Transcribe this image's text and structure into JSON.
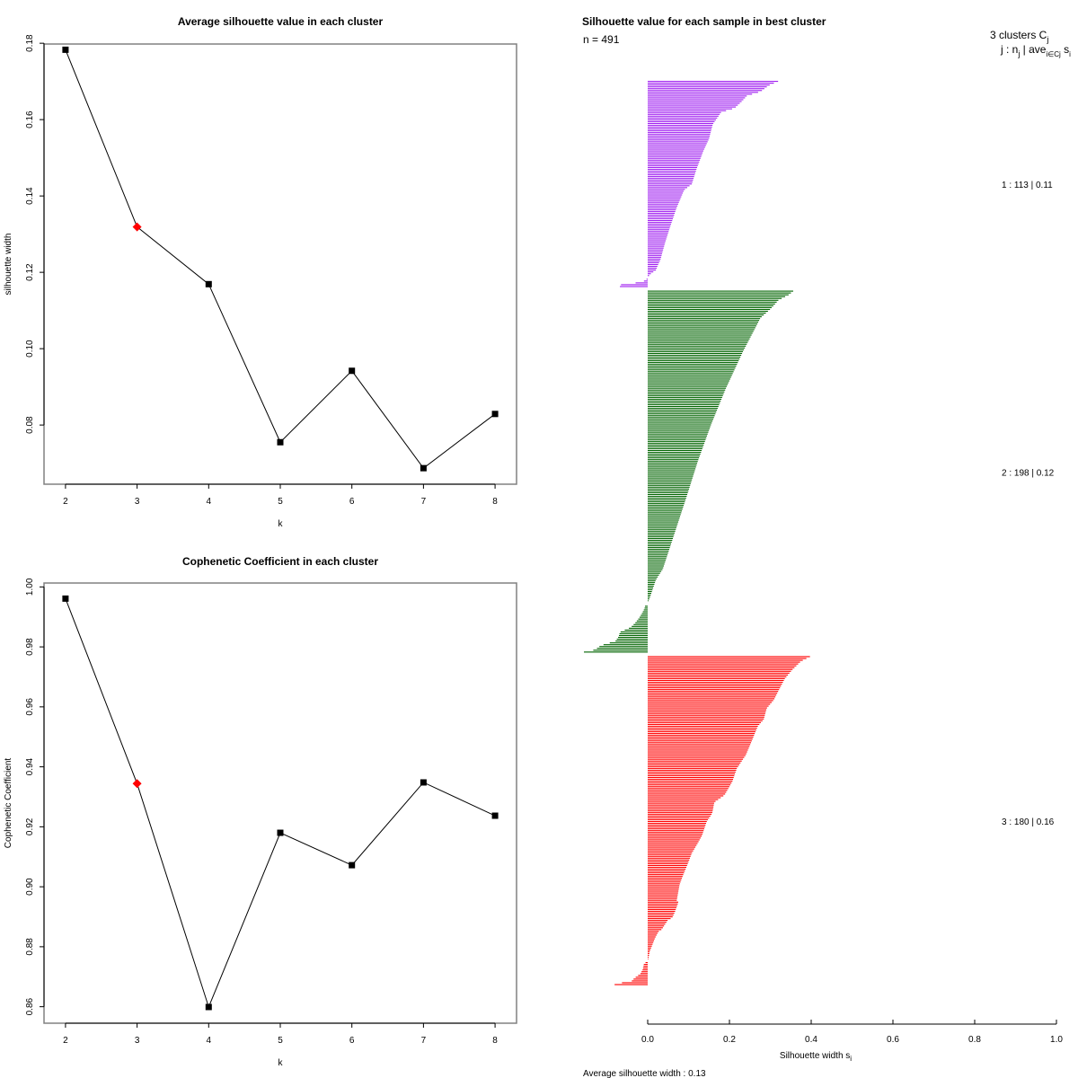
{
  "chart_data": [
    {
      "type": "line",
      "title": "Average silhouette value in each cluster",
      "xlabel": "k",
      "ylabel": "silhouette width",
      "x": [
        2,
        3,
        4,
        5,
        6,
        7,
        8
      ],
      "values": [
        0.1783,
        0.1319,
        0.1169,
        0.0755,
        0.0942,
        0.0687,
        0.0829
      ],
      "highlight_index": 1,
      "highlight_color": "#ff0000",
      "point_color": "#000000",
      "xticks": [
        "2",
        "3",
        "4",
        "5",
        "6",
        "7",
        "8"
      ],
      "yticks": [
        0.08,
        0.1,
        0.12,
        0.14,
        0.16,
        0.18
      ],
      "ytick_labels": [
        "0.08",
        "0.10",
        "0.12",
        "0.14",
        "0.16",
        "0.18"
      ],
      "xlim": [
        1.7,
        8.3
      ],
      "ylim": [
        0.0645,
        0.1798
      ],
      "grid": false
    },
    {
      "type": "line",
      "title": "Cophenetic Coefficient in each cluster",
      "xlabel": "k",
      "ylabel": "Cophenetic Coefficient",
      "x": [
        2,
        3,
        4,
        5,
        6,
        7,
        8
      ],
      "values": [
        0.9961,
        0.9344,
        0.8599,
        0.918,
        0.9072,
        0.9348,
        0.9237
      ],
      "highlight_index": 1,
      "highlight_color": "#ff0000",
      "point_color": "#000000",
      "xticks": [
        "2",
        "3",
        "4",
        "5",
        "6",
        "7",
        "8"
      ],
      "yticks": [
        0.86,
        0.88,
        0.9,
        0.92,
        0.94,
        0.96,
        0.98,
        1.0
      ],
      "ytick_labels": [
        "0.86",
        "0.88",
        "0.90",
        "0.92",
        "0.94",
        "0.96",
        "0.98",
        "1.00"
      ],
      "xlim": [
        1.7,
        8.3
      ],
      "ylim": [
        0.8545,
        1.0013
      ],
      "grid": false
    },
    {
      "type": "bar",
      "orientation": "horizontal",
      "title": "Silhouette value for each sample in best cluster",
      "subtitle": "n = 491",
      "xlabel": "Silhouette width s",
      "xlabel_sub": "i",
      "xlim": [
        0.0,
        1.0
      ],
      "xticks": [
        "0.0",
        "0.2",
        "0.4",
        "0.6",
        "0.8",
        "1.0"
      ],
      "xtick_values": [
        0.0,
        0.2,
        0.4,
        0.6,
        0.8,
        1.0
      ],
      "footer": "Average silhouette width :  0.13",
      "legend_header": {
        "line1": "3  clusters  C",
        "line1_sub": "j",
        "line2": "j :  n",
        "line2_sub": "j",
        "line2_rest": " | ave",
        "line2_sub2": "i∈Cj",
        "line2_end": "  s",
        "line2_sub3": "i"
      },
      "clusters": [
        {
          "id": 1,
          "n": 113,
          "avg": "0.11",
          "label": "1 :   113  |  0.11",
          "color": "#a020f0",
          "profile": [
            [
              0.0,
              0.319
            ],
            [
              0.02,
              0.296
            ],
            [
              0.05,
              0.276
            ],
            [
              0.07,
              0.243
            ],
            [
              0.1,
              0.229
            ],
            [
              0.13,
              0.213
            ],
            [
              0.15,
              0.18
            ],
            [
              0.21,
              0.159
            ],
            [
              0.28,
              0.15
            ],
            [
              0.34,
              0.136
            ],
            [
              0.43,
              0.119
            ],
            [
              0.5,
              0.108
            ],
            [
              0.53,
              0.089
            ],
            [
              0.62,
              0.07
            ],
            [
              0.72,
              0.053
            ],
            [
              0.79,
              0.042
            ],
            [
              0.87,
              0.031
            ],
            [
              0.9,
              0.024
            ],
            [
              0.92,
              0.02
            ],
            [
              0.935,
              0.009
            ],
            [
              0.945,
              0.004
            ],
            [
              0.955,
              0.0
            ],
            [
              0.96,
              -0.002
            ],
            [
              0.97,
              -0.004
            ],
            [
              0.98,
              -0.02
            ],
            [
              0.99,
              -0.065
            ],
            [
              1.0,
              -0.068
            ]
          ]
        },
        {
          "id": 2,
          "n": 198,
          "avg": "0.12",
          "label": "2 :   198  |  0.12",
          "color": "#006400",
          "profile": [
            [
              0.0,
              0.356
            ],
            [
              0.01,
              0.345
            ],
            [
              0.025,
              0.32
            ],
            [
              0.05,
              0.3
            ],
            [
              0.074,
              0.276
            ],
            [
              0.17,
              0.232
            ],
            [
              0.27,
              0.191
            ],
            [
              0.37,
              0.155
            ],
            [
              0.47,
              0.123
            ],
            [
              0.57,
              0.095
            ],
            [
              0.67,
              0.066
            ],
            [
              0.77,
              0.037
            ],
            [
              0.8,
              0.02
            ],
            [
              0.85,
              0.005
            ],
            [
              0.86,
              0.001
            ],
            [
              0.868,
              0.0
            ],
            [
              0.87,
              -0.006
            ],
            [
              0.88,
              -0.008
            ],
            [
              0.895,
              -0.015
            ],
            [
              0.907,
              -0.022
            ],
            [
              0.92,
              -0.031
            ],
            [
              0.932,
              -0.042
            ],
            [
              0.945,
              -0.068
            ],
            [
              0.957,
              -0.071
            ],
            [
              0.97,
              -0.079
            ],
            [
              0.982,
              -0.115
            ],
            [
              0.994,
              -0.129
            ],
            [
              1.0,
              -0.156
            ]
          ]
        },
        {
          "id": 3,
          "n": 180,
          "avg": "0.16",
          "label": "3 :   180  |  0.16",
          "color": "#ff0000",
          "profile": [
            [
              0.0,
              0.397
            ],
            [
              0.014,
              0.375
            ],
            [
              0.041,
              0.353
            ],
            [
              0.068,
              0.335
            ],
            [
              0.104,
              0.32
            ],
            [
              0.131,
              0.309
            ],
            [
              0.158,
              0.291
            ],
            [
              0.191,
              0.284
            ],
            [
              0.213,
              0.269
            ],
            [
              0.259,
              0.254
            ],
            [
              0.3,
              0.24
            ],
            [
              0.341,
              0.218
            ],
            [
              0.381,
              0.207
            ],
            [
              0.422,
              0.188
            ],
            [
              0.444,
              0.163
            ],
            [
              0.477,
              0.158
            ],
            [
              0.504,
              0.144
            ],
            [
              0.545,
              0.133
            ],
            [
              0.572,
              0.121
            ],
            [
              0.599,
              0.108
            ],
            [
              0.635,
              0.097
            ],
            [
              0.668,
              0.086
            ],
            [
              0.695,
              0.078
            ],
            [
              0.744,
              0.071
            ],
            [
              0.749,
              0.075
            ],
            [
              0.777,
              0.067
            ],
            [
              0.796,
              0.06
            ],
            [
              0.804,
              0.049
            ],
            [
              0.817,
              0.042
            ],
            [
              0.831,
              0.035
            ],
            [
              0.839,
              0.026
            ],
            [
              0.858,
              0.018
            ],
            [
              0.88,
              0.011
            ],
            [
              0.899,
              0.005
            ],
            [
              0.918,
              0.002
            ],
            [
              0.93,
              0.0
            ],
            [
              0.935,
              -0.009
            ],
            [
              0.954,
              -0.012
            ],
            [
              0.967,
              -0.018
            ],
            [
              0.981,
              -0.033
            ],
            [
              0.989,
              -0.039
            ],
            [
              0.994,
              -0.062
            ],
            [
              0.997,
              -0.069
            ],
            [
              1.0,
              -0.081
            ]
          ]
        }
      ]
    }
  ]
}
